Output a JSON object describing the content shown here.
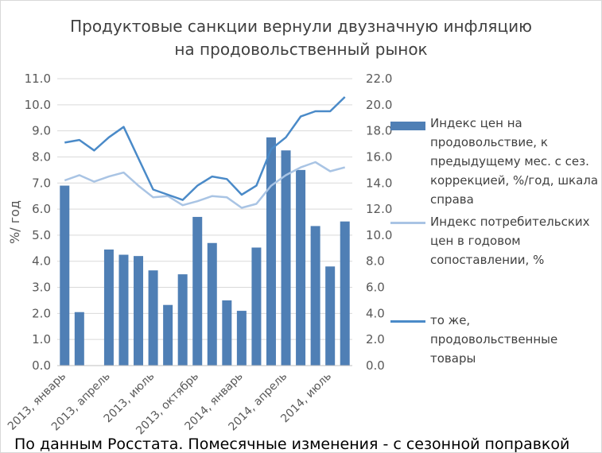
{
  "chart_data": {
    "type": "bar+line",
    "title": [
      "Продуктовые санкции вернули двузначную инфляцию",
      "на продовольственный рынок"
    ],
    "ylabel": "%/ год",
    "ylim_left": [
      0,
      11
    ],
    "ylim_right": [
      0,
      22
    ],
    "left_ticks": [
      "0.0",
      "1.0",
      "2.0",
      "3.0",
      "4.0",
      "5.0",
      "6.0",
      "7.0",
      "8.0",
      "9.0",
      "10.0",
      "11.0"
    ],
    "right_ticks": [
      "0.0",
      "2.0",
      "4.0",
      "6.0",
      "8.0",
      "10.0",
      "12.0",
      "14.0",
      "16.0",
      "18.0",
      "20.0",
      "22.0"
    ],
    "categories": [
      "2013, январь",
      "2013, февраль",
      "2013, март",
      "2013, апрель",
      "2013, май",
      "2013, июнь",
      "2013, июль",
      "2013, август",
      "2013, сентябрь",
      "2013, октябрь",
      "2013, ноябрь",
      "2013, декабрь",
      "2014, январь",
      "2014, февраль",
      "2014, март",
      "2014, апрель",
      "2014, май",
      "2014, июнь",
      "2014, июль",
      "2014, август"
    ],
    "x_tick_labels": [
      {
        "index": 0,
        "text": "2013, январь"
      },
      {
        "index": 3,
        "text": "2013, апрель"
      },
      {
        "index": 6,
        "text": "2013, июль"
      },
      {
        "index": 9,
        "text": "2013, октябрь"
      },
      {
        "index": 12,
        "text": "2014, январь"
      },
      {
        "index": 15,
        "text": "2014, апрель"
      },
      {
        "index": 18,
        "text": "2014, июль"
      }
    ],
    "series": [
      {
        "name": "Индекс цен на продовольствие, к предыдущему мес. с сез. коррекцией, %/год, шкала справа",
        "type": "bar",
        "axis": "right",
        "color": "#4f7fb5",
        "values": [
          13.8,
          4.1,
          null,
          8.9,
          8.5,
          8.4,
          7.3,
          4.65,
          7.0,
          11.4,
          9.4,
          5.0,
          4.2,
          9.05,
          17.5,
          16.5,
          15.0,
          10.7,
          7.6,
          11.05
        ]
      },
      {
        "name": "Индекс потребительских цен в годовом сопоставлении, %",
        "type": "line",
        "axis": "left",
        "color": "#a9c4e4",
        "values": [
          7.1,
          7.3,
          7.05,
          7.25,
          7.4,
          6.9,
          6.45,
          6.5,
          6.15,
          6.3,
          6.5,
          6.45,
          6.05,
          6.2,
          6.9,
          7.3,
          7.6,
          7.8,
          7.45,
          7.6
        ]
      },
      {
        "name": "то же, продовольственные товары",
        "type": "line",
        "axis": "left",
        "color": "#4a8ac8",
        "values": [
          8.55,
          8.65,
          8.25,
          8.75,
          9.15,
          7.95,
          6.75,
          6.55,
          6.35,
          6.9,
          7.25,
          7.15,
          6.55,
          6.9,
          8.3,
          8.75,
          9.55,
          9.75,
          9.75,
          10.3
        ]
      }
    ],
    "grid": true,
    "legend_position": "right"
  },
  "footnote": "По данным Росстата. Помесячные изменения - с сезонной поправкой"
}
